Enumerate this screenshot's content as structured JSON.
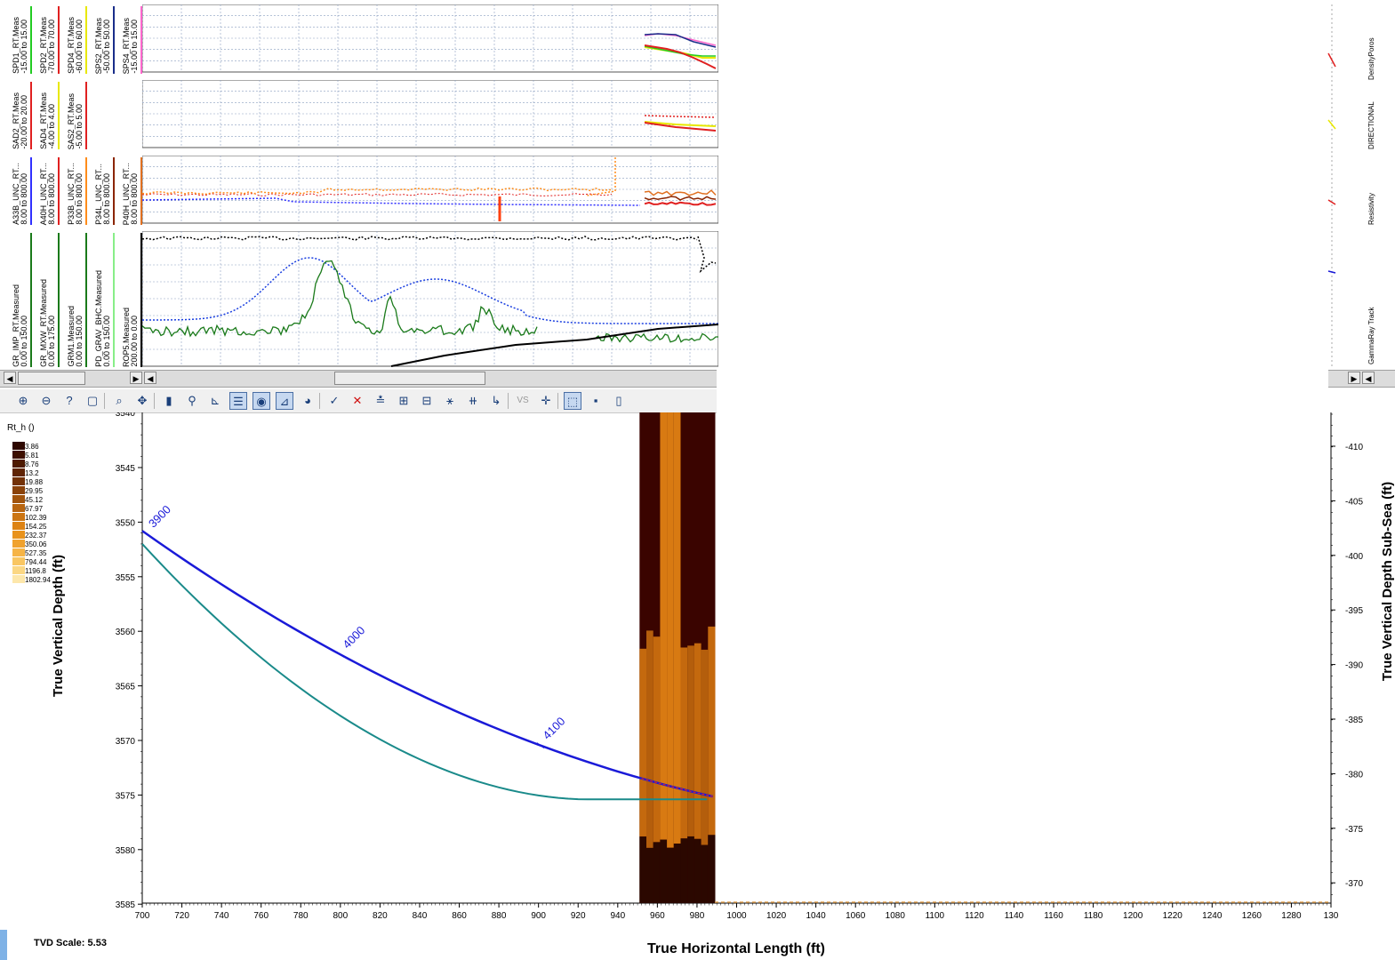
{
  "tracks": [
    {
      "id": "density-poros",
      "side_label": "DensityPoros",
      "curves": [
        {
          "name": "SPD1_RT.Meas",
          "range": "-15.00 to 15.00",
          "color": "#22cc22"
        },
        {
          "name": "SPD2_RT.Meas",
          "range": "-70.00 to 70.00",
          "color": "#e02020"
        },
        {
          "name": "SPD4_RT.Meas",
          "range": "-60.00 to 60.00",
          "color": "#e8e800"
        },
        {
          "name": "SPS2_RT.Meas",
          "range": "-50.00 to 50.00",
          "color": "#1a2e8a"
        },
        {
          "name": "SPS4_RT.Meas",
          "range": "-15.00 to 15.00",
          "color": "#ff66cc"
        }
      ]
    },
    {
      "id": "directional",
      "side_label": "DIRECTIONAL",
      "curves": [
        {
          "name": "SAD2_RT.Meas",
          "range": "-20.00 to 20.00",
          "color": "#e02020"
        },
        {
          "name": "SAD4_RT.Meas",
          "range": "-4.00 to 4.00",
          "color": "#e8e800"
        },
        {
          "name": "SAS2_RT.Meas",
          "range": "-5.00 to 5.00",
          "color": "#e02020"
        }
      ]
    },
    {
      "id": "resistivity",
      "side_label": "Resistivity",
      "curves": [
        {
          "name": "A33B_UNC_RT...",
          "range": "8.00 to 800.00",
          "color": "#3030ff"
        },
        {
          "name": "A40H_UNC_RT...",
          "range": "8.00 to 800.00",
          "color": "#e02020"
        },
        {
          "name": "P33B_UNC_RT...",
          "range": "8.00 to 800.00",
          "color": "#ff8c1a"
        },
        {
          "name": "P34L_UNC_RT...",
          "range": "8.00 to 800.00",
          "color": "#8b2500"
        },
        {
          "name": "P40H_UNC_RT...",
          "range": "8.00 to 800.00",
          "color": "#e07020"
        }
      ]
    },
    {
      "id": "gammaray",
      "side_label": "GammaRay Track",
      "curves": [
        {
          "name": "GR_IMP_RT.Measured",
          "range": "0.00 to 150.00",
          "color": "#1a7a1a"
        },
        {
          "name": "GR_MXW_RT.Measured",
          "range": "0.00 to 175.00",
          "color": "#1a7a1a"
        },
        {
          "name": "GRM1.Measured",
          "range": "0.00 to 150.00",
          "color": "#1a7a1a"
        },
        {
          "name": "PD_GRAV_BHC.Measured",
          "range": "0.00 to 150.00",
          "color": "#88ee88"
        },
        {
          "name": "ROP5.Measured",
          "range": "200.00 to 0.00",
          "color": "#000000"
        }
      ]
    }
  ],
  "legend": {
    "title": "Rt_h ()",
    "entries": [
      {
        "value": "3.86",
        "color": "#2e0800"
      },
      {
        "value": "5.81",
        "color": "#3d0f00"
      },
      {
        "value": "8.76",
        "color": "#4e1a02"
      },
      {
        "value": "13.2",
        "color": "#5f2405"
      },
      {
        "value": "19.88",
        "color": "#733208"
      },
      {
        "value": "29.95",
        "color": "#8a420a"
      },
      {
        "value": "45.12",
        "color": "#a1540d"
      },
      {
        "value": "67.97",
        "color": "#b86510"
      },
      {
        "value": "102.39",
        "color": "#cc7512"
      },
      {
        "value": "154.25",
        "color": "#dd8314"
      },
      {
        "value": "232.37",
        "color": "#e8921c"
      },
      {
        "value": "350.06",
        "color": "#f0a22e"
      },
      {
        "value": "527.35",
        "color": "#f6b446"
      },
      {
        "value": "794.44",
        "color": "#f9c662"
      },
      {
        "value": "1196.8",
        "color": "#fbd784"
      },
      {
        "value": "1802.94",
        "color": "#fde7ab"
      }
    ]
  },
  "section": {
    "left_axis_title": "True Vertical Depth (ft)",
    "right_axis_title": "True Vertical Depth Sub-Sea (ft)",
    "bottom_axis_title": "True Horizontal Length (ft)",
    "tvd_scale": "TVD Scale: 5.53",
    "tvd_ticks": [
      "3545",
      "3550",
      "3555",
      "3560",
      "3565",
      "3570",
      "3575",
      "3580",
      "3585"
    ],
    "tvd_top_partial": "3540",
    "tvdss_ticks": [
      "-410",
      "-405",
      "-400",
      "-395",
      "-390",
      "-385",
      "-380",
      "-375",
      "-370"
    ],
    "x_ticks": [
      "700",
      "720",
      "740",
      "760",
      "780",
      "800",
      "820",
      "840",
      "860",
      "880",
      "900",
      "920",
      "940",
      "960",
      "980",
      "1000",
      "1020",
      "1040",
      "1060",
      "1080",
      "1100",
      "1120",
      "1140",
      "1160",
      "1180",
      "1200",
      "1220",
      "1240",
      "1260",
      "1280",
      "130"
    ],
    "md_labels": [
      "3900",
      "4000",
      "4100"
    ]
  },
  "toolbar": {
    "buttons": [
      {
        "name": "zoom-in-icon",
        "glyph": "⊕"
      },
      {
        "name": "zoom-out-icon",
        "glyph": "⊖"
      },
      {
        "name": "zoom-query-icon",
        "glyph": "?"
      },
      {
        "name": "zoom-box-icon",
        "glyph": "▢"
      },
      {
        "name": "zoom-fit-icon",
        "glyph": "⌕"
      },
      {
        "name": "pan-icon",
        "glyph": "✥"
      },
      {
        "name": "color-scale-icon",
        "glyph": "▮"
      },
      {
        "name": "binoculars-icon",
        "glyph": "⚲"
      },
      {
        "name": "log-plot-icon",
        "glyph": "⊾"
      },
      {
        "name": "layers-icon",
        "glyph": "☰"
      },
      {
        "name": "palette-icon",
        "glyph": "◉"
      },
      {
        "name": "wells-icon",
        "glyph": "⊿"
      },
      {
        "name": "pie-icon",
        "glyph": "◕"
      },
      {
        "name": "pick-icon",
        "glyph": "✓"
      },
      {
        "name": "delete-icon",
        "glyph": "✕"
      },
      {
        "name": "align-icon",
        "glyph": "≛"
      },
      {
        "name": "split-icon",
        "glyph": "⊞"
      },
      {
        "name": "merge-icon",
        "glyph": "⊟"
      },
      {
        "name": "fault-icon",
        "glyph": "⚹"
      },
      {
        "name": "crossline-icon",
        "glyph": "⧺"
      },
      {
        "name": "chart-icon",
        "glyph": "↳"
      },
      {
        "name": "vs-icon",
        "glyph": "VS"
      },
      {
        "name": "cross-hair-icon",
        "glyph": "✛"
      },
      {
        "name": "select-icon",
        "glyph": "⬚"
      },
      {
        "name": "save-icon",
        "glyph": "▪"
      },
      {
        "name": "new-icon",
        "glyph": "▯"
      }
    ]
  },
  "colors": {
    "well_path": "#1a1ad8",
    "target_line": "#1a8a8a",
    "grid": "#8a9fbf"
  }
}
